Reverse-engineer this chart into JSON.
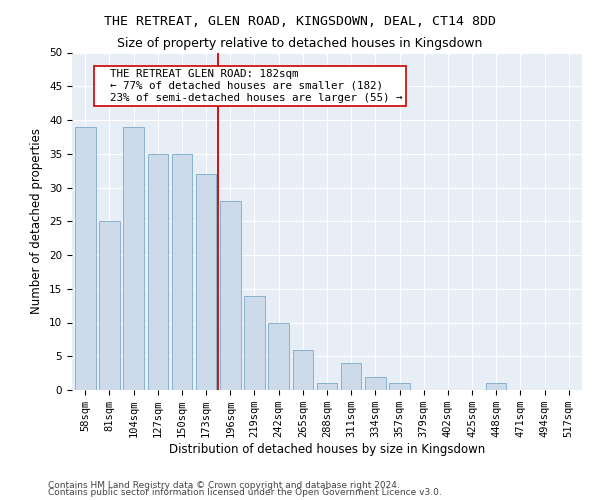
{
  "title": "THE RETREAT, GLEN ROAD, KINGSDOWN, DEAL, CT14 8DD",
  "subtitle": "Size of property relative to detached houses in Kingsdown",
  "xlabel": "Distribution of detached houses by size in Kingsdown",
  "ylabel": "Number of detached properties",
  "bar_color": "#ccdaea",
  "bar_edge_color": "#7aaac8",
  "categories": [
    "58sqm",
    "81sqm",
    "104sqm",
    "127sqm",
    "150sqm",
    "173sqm",
    "196sqm",
    "219sqm",
    "242sqm",
    "265sqm",
    "288sqm",
    "311sqm",
    "334sqm",
    "357sqm",
    "379sqm",
    "402sqm",
    "425sqm",
    "448sqm",
    "471sqm",
    "494sqm",
    "517sqm"
  ],
  "values": [
    39,
    25,
    39,
    35,
    35,
    32,
    28,
    14,
    10,
    6,
    1,
    4,
    2,
    1,
    0,
    0,
    0,
    1,
    0,
    0,
    0
  ],
  "vline_x": 6.0,
  "vline_color": "#cc0000",
  "annotation_line1": "  THE RETREAT GLEN ROAD: 182sqm",
  "annotation_line2": "  ← 77% of detached houses are smaller (182)",
  "annotation_line3": "  23% of semi-detached houses are larger (55) →",
  "ylim": [
    0,
    50
  ],
  "yticks": [
    0,
    5,
    10,
    15,
    20,
    25,
    30,
    35,
    40,
    45,
    50
  ],
  "bg_color": "#e8eef6",
  "footnote1": "Contains HM Land Registry data © Crown copyright and database right 2024.",
  "footnote2": "Contains public sector information licensed under the Open Government Licence v3.0.",
  "title_fontsize": 9.5,
  "subtitle_fontsize": 9,
  "annotation_fontsize": 7.8,
  "xlabel_fontsize": 8.5,
  "ylabel_fontsize": 8.5,
  "tick_fontsize": 7.5,
  "footnote_fontsize": 6.5
}
